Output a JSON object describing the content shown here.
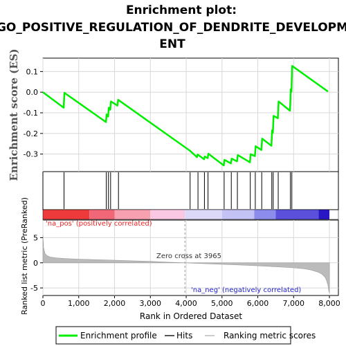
{
  "title_lines": [
    "Enrichment plot:",
    "GO_POSITIVE_REGULATION_OF_DENDRITE_DEVELOPM",
    "ENT"
  ],
  "colors": {
    "profile": "#00ee00",
    "hits": "#000000",
    "metric_fill": "#bbbbbb",
    "pos_text": "#ee2222",
    "neg_text": "#2222cc"
  },
  "chart_data": [
    {
      "type": "line",
      "ylabel": "Enrichment score (ES)",
      "ylim": [
        -0.385,
        0.165
      ],
      "xlim": [
        0,
        8250
      ],
      "yticks": [
        0.1,
        0.0,
        -0.1,
        -0.2,
        -0.3
      ],
      "ytick_labels": [
        "0.1",
        "0.0",
        "-0.1",
        "-0.2",
        "-0.3"
      ],
      "grid": true,
      "series": [
        {
          "name": "Enrichment profile",
          "x": [
            0,
            580,
            600,
            1760,
            1780,
            1820,
            1840,
            1880,
            1900,
            2080,
            2100,
            4100,
            4300,
            4320,
            4500,
            4520,
            4600,
            4620,
            5050,
            5070,
            5250,
            5270,
            5420,
            5440,
            5780,
            5800,
            5920,
            5940,
            6100,
            6120,
            6380,
            6400,
            6420,
            6440,
            6560,
            6580,
            6900,
            6920,
            6940,
            6960,
            7960
          ],
          "y": [
            0.0,
            -0.075,
            -0.003,
            -0.145,
            -0.108,
            -0.118,
            -0.075,
            -0.085,
            -0.045,
            -0.065,
            -0.037,
            -0.283,
            -0.315,
            -0.302,
            -0.325,
            -0.312,
            -0.32,
            -0.298,
            -0.355,
            -0.328,
            -0.345,
            -0.322,
            -0.335,
            -0.305,
            -0.34,
            -0.3,
            -0.31,
            -0.262,
            -0.28,
            -0.225,
            -0.26,
            -0.185,
            -0.197,
            -0.115,
            -0.126,
            -0.045,
            -0.09,
            0.015,
            0.002,
            0.127,
            0.003
          ]
        }
      ]
    },
    {
      "type": "scatter",
      "name": "Hits",
      "x": [
        590,
        1770,
        1830,
        1890,
        2110,
        4110,
        4330,
        4510,
        4610,
        5060,
        5260,
        5430,
        5790,
        5930,
        6110,
        6390,
        6430,
        6570,
        6910,
        6950
      ]
    },
    {
      "type": "heatmap",
      "segments": [
        {
          "x": [
            0,
            1300
          ],
          "color": "#ee3a3a"
        },
        {
          "x": [
            1300,
            2000
          ],
          "color": "#f06878"
        },
        {
          "x": [
            2000,
            3000
          ],
          "color": "#f7a0b0"
        },
        {
          "x": [
            3000,
            3965
          ],
          "color": "#fbc8e4"
        },
        {
          "x": [
            3965,
            5000
          ],
          "color": "#dcd8f8"
        },
        {
          "x": [
            5000,
            5900
          ],
          "color": "#c2c2f4"
        },
        {
          "x": [
            5900,
            6500
          ],
          "color": "#8c8cec"
        },
        {
          "x": [
            6500,
            7700
          ],
          "color": "#5a50dc"
        },
        {
          "x": [
            7700,
            8000
          ],
          "color": "#2a16c4"
        }
      ]
    },
    {
      "type": "area",
      "name": "Ranking metric scores",
      "ylabel": "Ranked list metric (PreRanked)",
      "xlabel": "Rank in Ordered Dataset",
      "ylim": [
        -6.5,
        8.5
      ],
      "xlim": [
        0,
        8250
      ],
      "yticks": [
        5,
        0,
        -5
      ],
      "ytick_labels": [
        "5",
        "0",
        "-5"
      ],
      "xticks": [
        0,
        1000,
        2000,
        3000,
        4000,
        5000,
        6000,
        7000,
        8000
      ],
      "xtick_labels": [
        "0",
        "1,000",
        "2,000",
        "3,000",
        "4,000",
        "5,000",
        "6,000",
        "7,000",
        "8,000"
      ],
      "x": [
        0,
        20,
        60,
        120,
        200,
        350,
        600,
        1000,
        1500,
        2000,
        2500,
        3000,
        3500,
        3965,
        4500,
        5000,
        5500,
        6000,
        6500,
        7000,
        7300,
        7500,
        7700,
        7800,
        7880,
        7920,
        7960,
        7980,
        8000
      ],
      "y": [
        5.5,
        3.0,
        1.8,
        1.4,
        1.15,
        1.0,
        0.85,
        0.72,
        0.62,
        0.52,
        0.4,
        0.28,
        0.12,
        0.0,
        -0.15,
        -0.3,
        -0.45,
        -0.6,
        -0.78,
        -1.0,
        -1.2,
        -1.45,
        -1.9,
        -2.3,
        -2.9,
        -3.5,
        -4.5,
        -5.5,
        -6.0
      ]
    }
  ],
  "annotations": {
    "pos_label": "'na_pos' (positively correlated)",
    "neg_label": "'na_neg' (negatively correlated)",
    "zero_cross": "Zero cross at 3965",
    "zero_cross_rank": 3965
  },
  "legend": {
    "items": [
      "Enrichment profile",
      "Hits",
      "Ranking metric scores"
    ]
  }
}
